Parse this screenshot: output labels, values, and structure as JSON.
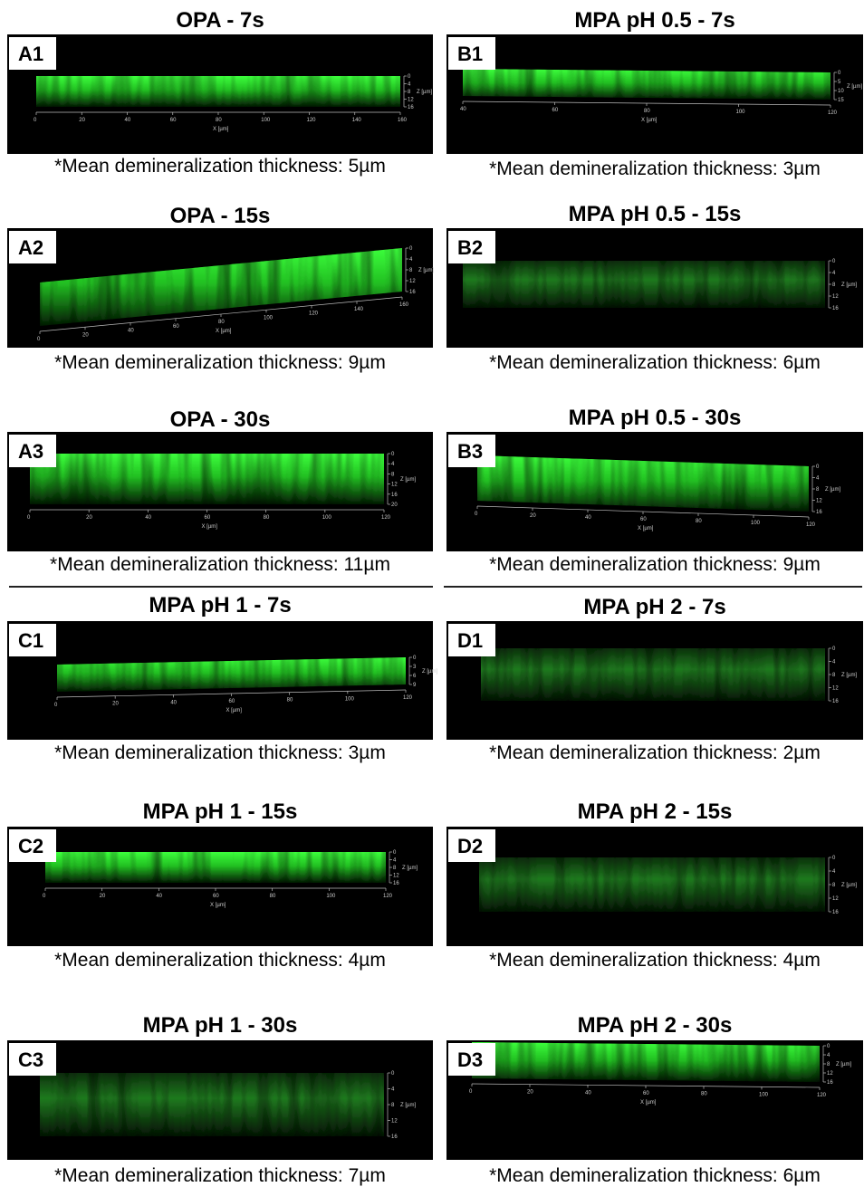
{
  "panels": [
    {
      "title": "OPA - 7s",
      "label": "A1",
      "caption": "*Mean demineralization thickness: 5µm",
      "xticks": [
        "0",
        "20",
        "40",
        "60",
        "80",
        "100",
        "120",
        "140",
        "160"
      ],
      "zticks": [
        "0",
        "4",
        "8",
        "12",
        "16"
      ],
      "x_axis_label": "X [µm]",
      "z_axis_label": "Z [µm]"
    },
    {
      "title": "MPA pH 0.5 - 7s",
      "label": "B1",
      "caption": "*Mean demineralization thickness: 3µm",
      "xticks": [
        "40",
        "60",
        "80",
        "100",
        "120"
      ],
      "zticks": [
        "0",
        "5",
        "10",
        "15"
      ],
      "x_axis_label": "X [µm]",
      "z_axis_label": "Z [µm]"
    },
    {
      "title": "OPA - 15s",
      "label": "A2",
      "caption": "*Mean demineralization thickness: 9µm",
      "xticks": [
        "0",
        "20",
        "40",
        "60",
        "80",
        "100",
        "120",
        "140",
        "160"
      ],
      "zticks": [
        "0",
        "4",
        "8",
        "12",
        "16"
      ],
      "x_axis_label": "X [µm]",
      "z_axis_label": "Z [µm]"
    },
    {
      "title": "MPA pH 0.5 - 15s",
      "label": "B2",
      "caption": "*Mean demineralization thickness: 6µm",
      "zticks": [
        "0",
        "4",
        "8",
        "12",
        "16"
      ],
      "z_axis_label": "Z [µm]"
    },
    {
      "title": "OPA - 30s",
      "label": "A3",
      "caption": "*Mean demineralization thickness: 11µm",
      "xticks": [
        "0",
        "20",
        "40",
        "60",
        "80",
        "100",
        "120"
      ],
      "zticks": [
        "0",
        "4",
        "8",
        "12",
        "16",
        "20"
      ],
      "x_axis_label": "X [µm]",
      "z_axis_label": "Z [µm]"
    },
    {
      "title": "MPA pH 0.5 - 30s",
      "label": "B3",
      "caption": "*Mean demineralization thickness: 9µm",
      "xticks": [
        "0",
        "20",
        "40",
        "60",
        "80",
        "100",
        "120"
      ],
      "zticks": [
        "0",
        "4",
        "8",
        "12",
        "16"
      ],
      "x_axis_label": "X [µm]",
      "z_axis_label": "Z [µm]"
    },
    {
      "title": "MPA pH 1 - 7s",
      "label": "C1",
      "caption": "*Mean demineralization thickness: 3µm",
      "xticks": [
        "0",
        "20",
        "40",
        "60",
        "80",
        "100",
        "120"
      ],
      "zticks": [
        "0",
        "3",
        "6",
        "9"
      ],
      "x_axis_label": "X [µm]",
      "z_axis_label": "Z [µm]"
    },
    {
      "title": "MPA pH 2 - 7s",
      "label": "D1",
      "caption": "*Mean demineralization thickness: 2µm",
      "zticks": [
        "0",
        "4",
        "8",
        "12",
        "16"
      ],
      "z_axis_label": "Z [µm]"
    },
    {
      "title": "MPA pH 1 - 15s",
      "label": "C2",
      "caption": "*Mean demineralization thickness: 4µm",
      "xticks": [
        "0",
        "20",
        "40",
        "60",
        "80",
        "100",
        "120"
      ],
      "zticks": [
        "0",
        "4",
        "8",
        "12",
        "16"
      ],
      "x_axis_label": "X [µm]",
      "z_axis_label": "Z [µm]"
    },
    {
      "title": "MPA pH 2 - 15s",
      "label": "D2",
      "caption": "*Mean demineralization thickness: 4µm",
      "zticks": [
        "0",
        "4",
        "8",
        "12",
        "16"
      ],
      "z_axis_label": "Z [µm]"
    },
    {
      "title": "MPA pH 1 - 30s",
      "label": "C3",
      "caption": "*Mean demineralization thickness: 7µm",
      "zticks": [
        "0",
        "4",
        "8",
        "12",
        "16"
      ],
      "z_axis_label": "Z [µm]"
    },
    {
      "title": "MPA pH 2 - 30s",
      "label": "D3",
      "caption": "*Mean demineralization thickness: 6µm",
      "xticks": [
        "0",
        "20",
        "40",
        "60",
        "80",
        "100",
        "120"
      ],
      "zticks": [
        "0",
        "4",
        "8",
        "12",
        "16"
      ],
      "x_axis_label": "X [µm]",
      "z_axis_label": "Z [µm]"
    }
  ]
}
